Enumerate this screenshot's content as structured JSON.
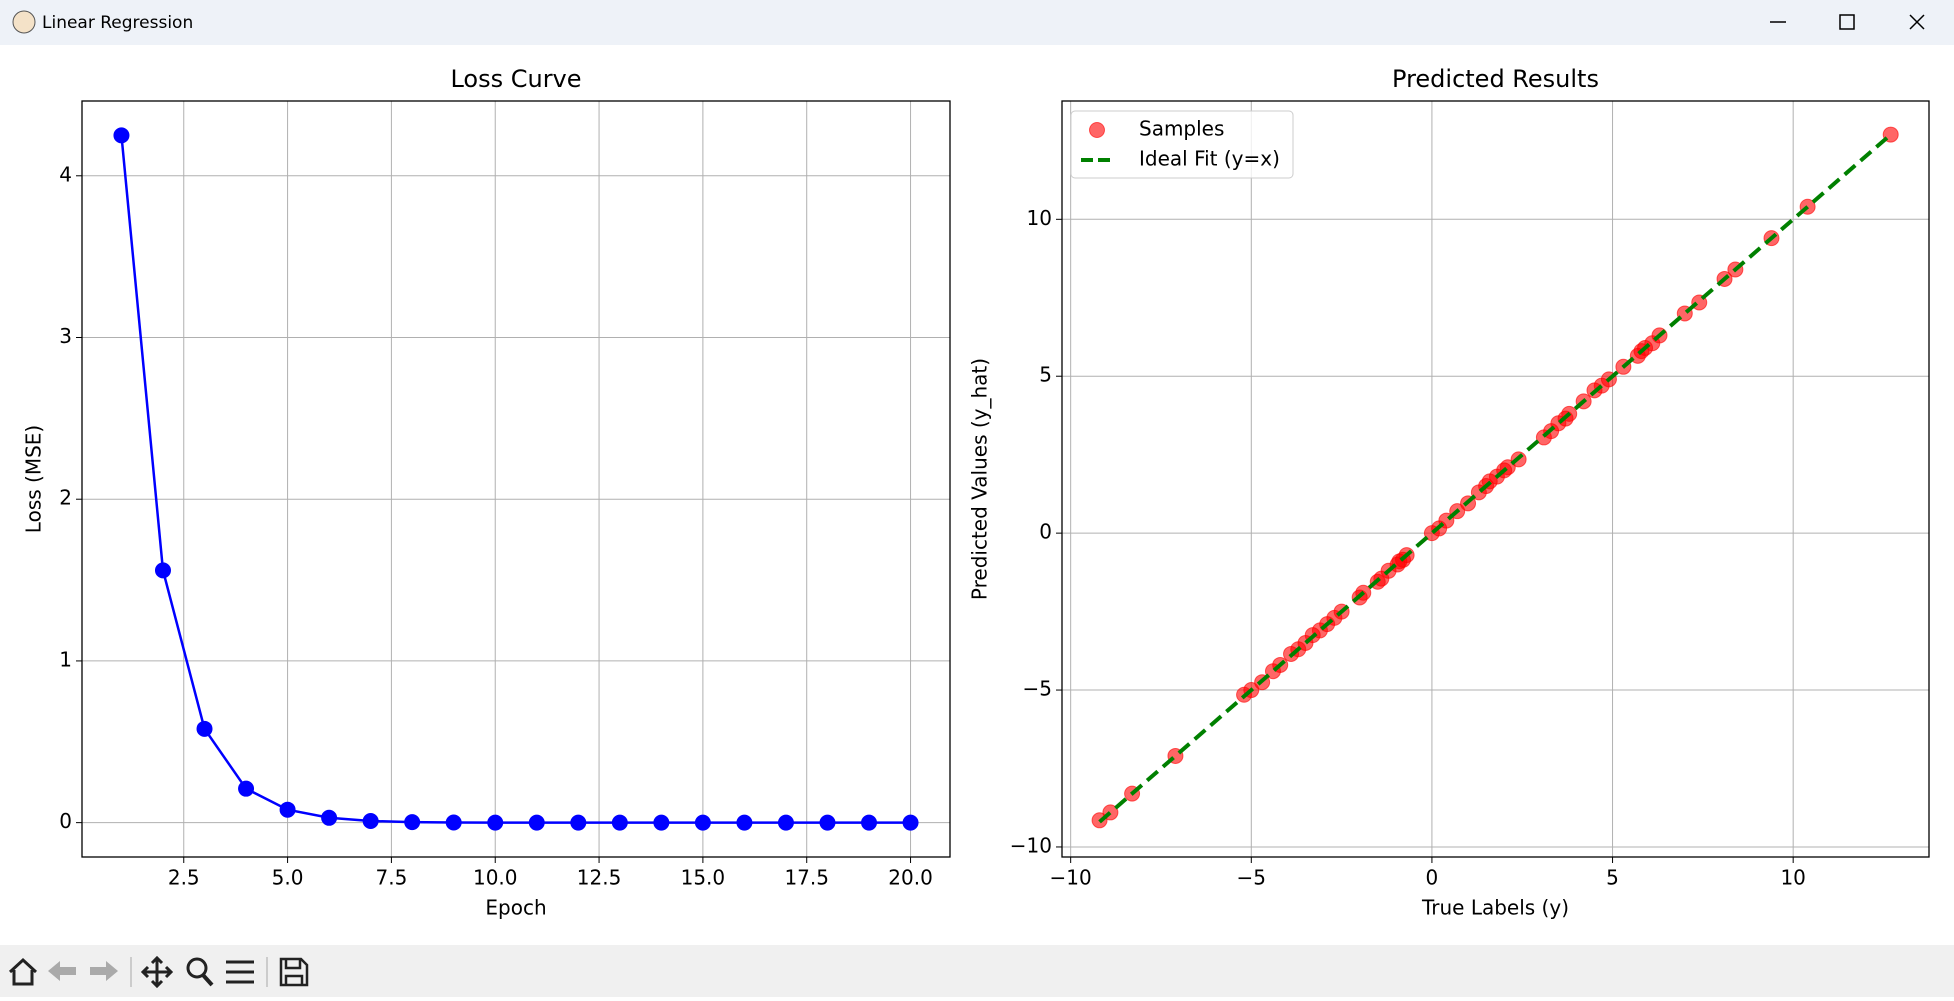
{
  "window": {
    "title": "Linear Regression"
  },
  "chart_data": [
    {
      "type": "line",
      "title": "Loss Curve",
      "xlabel": "Epoch",
      "ylabel": "Loss (MSE)",
      "x": [
        1,
        2,
        3,
        4,
        5,
        6,
        7,
        8,
        9,
        10,
        11,
        12,
        13,
        14,
        15,
        16,
        17,
        18,
        19,
        20
      ],
      "values": [
        4.25,
        1.56,
        0.58,
        0.21,
        0.08,
        0.03,
        0.01,
        0.003,
        0.001,
        0,
        0,
        0,
        0,
        0,
        0,
        0,
        0,
        0,
        0,
        0
      ],
      "color": "#0000ff",
      "marker": "o",
      "xlim": [
        0.05,
        20.95
      ],
      "ylim": [
        -0.2125,
        4.4625
      ],
      "xticks": [
        2.5,
        {
          "value": 5,
          "label": "5.0"
        },
        7.5,
        {
          "value": 10,
          "label": "10.0"
        },
        12.5,
        {
          "value": 15,
          "label": "15.0"
        },
        17.5,
        {
          "value": 20,
          "label": "20.0"
        }
      ],
      "yticks": [
        0,
        1,
        2,
        3,
        4
      ],
      "grid": true
    },
    {
      "type": "scatter",
      "title": "Predicted Results",
      "xlabel": "True Labels (y)",
      "ylabel": "Predicted Values (y_hat)",
      "series": [
        {
          "name": "Samples",
          "color": "#ff0000",
          "alpha": 0.6,
          "x": [
            -9.2,
            -8.9,
            -8.3,
            -7.1,
            -5.2,
            -5.0,
            -4.7,
            -4.4,
            -4.2,
            -3.9,
            -3.7,
            -3.5,
            -3.3,
            -3.1,
            -2.9,
            -2.7,
            -2.5,
            -2.0,
            -1.9,
            -1.5,
            -1.4,
            -1.2,
            -0.95,
            -0.9,
            -0.8,
            -0.7,
            0.0,
            0.2,
            0.4,
            0.7,
            1.0,
            1.3,
            1.5,
            1.6,
            1.8,
            2.0,
            2.1,
            2.4,
            3.1,
            3.3,
            3.5,
            3.7,
            3.8,
            4.2,
            4.5,
            4.7,
            4.9,
            5.3,
            5.7,
            5.8,
            5.9,
            6.1,
            6.3,
            7.0,
            7.4,
            8.1,
            8.4,
            9.4,
            10.4,
            12.7
          ],
          "values": [
            -9.15,
            -8.9,
            -8.3,
            -7.1,
            -5.15,
            -5.0,
            -4.75,
            -4.4,
            -4.2,
            -3.85,
            -3.7,
            -3.5,
            -3.25,
            -3.1,
            -2.9,
            -2.7,
            -2.5,
            -2.05,
            -1.9,
            -1.55,
            -1.45,
            -1.2,
            -1.0,
            -0.9,
            -0.85,
            -0.7,
            0.0,
            0.15,
            0.4,
            0.7,
            0.95,
            1.3,
            1.5,
            1.65,
            1.8,
            2.0,
            2.1,
            2.35,
            3.05,
            3.25,
            3.5,
            3.65,
            3.8,
            4.2,
            4.55,
            4.7,
            4.9,
            5.3,
            5.65,
            5.8,
            5.9,
            6.05,
            6.3,
            7.0,
            7.35,
            8.1,
            8.4,
            9.4,
            10.4,
            12.7
          ]
        },
        {
          "name": "Ideal Fit (y=x)",
          "color": "#008000",
          "linestyle": "dashed",
          "x": [
            -9.2,
            12.7
          ],
          "values": [
            -9.2,
            12.7
          ]
        }
      ],
      "legend": "upper left",
      "xlim": [
        -10.24,
        13.76
      ],
      "ylim": [
        -10.32,
        13.77
      ],
      "xticks": [
        {
          "value": -10,
          "label": "−10"
        },
        {
          "value": -5,
          "label": "−5"
        },
        0,
        5,
        10
      ],
      "yticks": [
        {
          "value": -10,
          "label": "−10"
        },
        {
          "value": -5,
          "label": "−5"
        },
        0,
        5,
        10
      ],
      "grid": true
    }
  ]
}
